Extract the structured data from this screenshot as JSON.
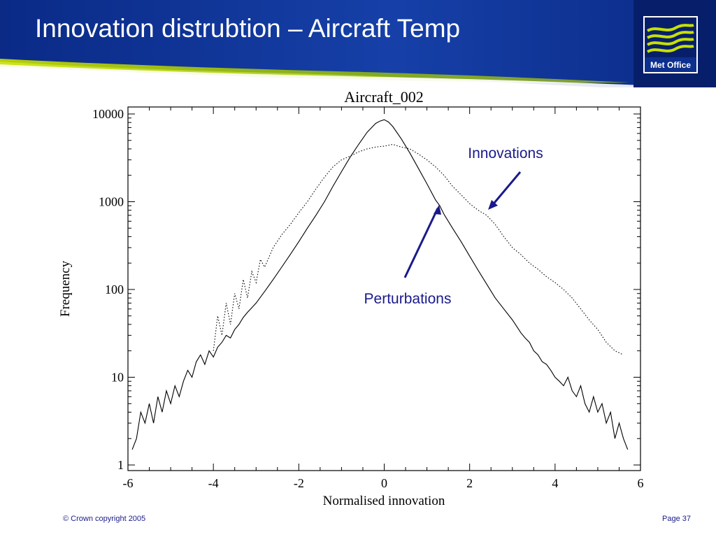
{
  "slide": {
    "title": "Innovation distrubtion – Aircraft Temp",
    "logo_text": "Met Office",
    "logo_icon": "met-office-waves-icon",
    "footer_left": "© Crown copyright 2005",
    "footer_right": "Page 37"
  },
  "colors": {
    "header_blue": "#0d2f8e",
    "header_dark": "#071f6a",
    "swoosh_green": "#c8e000",
    "annotation_text": "#1a1a8c",
    "arrow": "#1a1a8c",
    "curve": "#000000"
  },
  "chart_data": {
    "type": "line",
    "title": "Aircraft_002",
    "xlabel": "Normalised innovation",
    "ylabel": "Frequency",
    "xlim": [
      -6,
      6
    ],
    "ylim": [
      1,
      10000
    ],
    "yscale": "log",
    "xticks": [
      -6,
      -4,
      -2,
      0,
      2,
      4,
      6
    ],
    "yticks": [
      1,
      10,
      100,
      1000,
      10000
    ],
    "ytick_labels": [
      "1",
      "10",
      "100",
      "1000",
      "10000"
    ],
    "grid": false,
    "annotations": [
      {
        "text": "Innovations",
        "series": "Innovations",
        "arrow_to": [
          2.45,
          800
        ]
      },
      {
        "text": "Perturbations",
        "series": "Perturbations",
        "arrow_to": [
          1.3,
          900
        ]
      }
    ],
    "series": [
      {
        "name": "Perturbations",
        "style": "solid",
        "x": [
          -5.9,
          -5.8,
          -5.7,
          -5.6,
          -5.5,
          -5.4,
          -5.3,
          -5.2,
          -5.1,
          -5.0,
          -4.9,
          -4.8,
          -4.7,
          -4.6,
          -4.5,
          -4.4,
          -4.3,
          -4.2,
          -4.1,
          -4.0,
          -3.9,
          -3.8,
          -3.7,
          -3.6,
          -3.5,
          -3.4,
          -3.3,
          -3.2,
          -3.1,
          -3.0,
          -2.8,
          -2.6,
          -2.4,
          -2.2,
          -2.0,
          -1.8,
          -1.6,
          -1.4,
          -1.2,
          -1.0,
          -0.8,
          -0.6,
          -0.4,
          -0.2,
          -0.1,
          0.0,
          0.1,
          0.2,
          0.4,
          0.6,
          0.8,
          1.0,
          1.2,
          1.3,
          1.4,
          1.6,
          1.8,
          2.0,
          2.2,
          2.4,
          2.6,
          2.8,
          3.0,
          3.1,
          3.2,
          3.3,
          3.4,
          3.5,
          3.6,
          3.7,
          3.8,
          3.9,
          4.0,
          4.1,
          4.2,
          4.3,
          4.4,
          4.5,
          4.6,
          4.7,
          4.8,
          4.9,
          5.0,
          5.1,
          5.2,
          5.3,
          5.4,
          5.5,
          5.6,
          5.7
        ],
        "y": [
          1.5,
          2,
          4,
          3,
          5,
          3,
          6,
          4,
          7,
          5,
          8,
          6,
          9,
          12,
          10,
          15,
          18,
          14,
          20,
          17,
          22,
          25,
          30,
          28,
          35,
          40,
          48,
          55,
          62,
          70,
          95,
          130,
          180,
          250,
          350,
          500,
          700,
          1000,
          1500,
          2200,
          3200,
          4500,
          6200,
          7800,
          8300,
          8600,
          8100,
          7200,
          5200,
          3600,
          2400,
          1600,
          1050,
          900,
          720,
          500,
          350,
          240,
          165,
          115,
          80,
          60,
          45,
          38,
          32,
          28,
          25,
          20,
          18,
          15,
          14,
          12,
          10,
          9,
          8,
          10,
          7,
          6,
          8,
          5,
          4,
          6,
          4,
          5,
          3,
          4,
          2,
          3,
          2,
          1.5
        ]
      },
      {
        "name": "Innovations",
        "style": "dotted",
        "x": [
          -4.0,
          -3.9,
          -3.8,
          -3.7,
          -3.6,
          -3.5,
          -3.4,
          -3.3,
          -3.2,
          -3.1,
          -3.0,
          -2.9,
          -2.8,
          -2.6,
          -2.4,
          -2.2,
          -2.0,
          -1.8,
          -1.6,
          -1.4,
          -1.2,
          -1.0,
          -0.8,
          -0.6,
          -0.4,
          -0.2,
          0.0,
          0.2,
          0.4,
          0.6,
          0.8,
          1.0,
          1.2,
          1.4,
          1.6,
          1.8,
          2.0,
          2.2,
          2.4,
          2.6,
          2.8,
          3.0,
          3.2,
          3.4,
          3.6,
          3.8,
          4.0,
          4.2,
          4.4,
          4.6,
          4.8,
          5.0,
          5.2,
          5.4,
          5.6
        ],
        "y": [
          20,
          50,
          30,
          70,
          40,
          90,
          60,
          130,
          80,
          160,
          120,
          220,
          180,
          300,
          420,
          550,
          750,
          1000,
          1400,
          1900,
          2500,
          3000,
          3300,
          3700,
          4000,
          4200,
          4300,
          4500,
          4200,
          4000,
          3500,
          3000,
          2500,
          2000,
          1500,
          1200,
          950,
          800,
          700,
          550,
          400,
          300,
          250,
          200,
          170,
          140,
          120,
          100,
          80,
          60,
          45,
          35,
          25,
          20,
          18
        ]
      }
    ]
  }
}
